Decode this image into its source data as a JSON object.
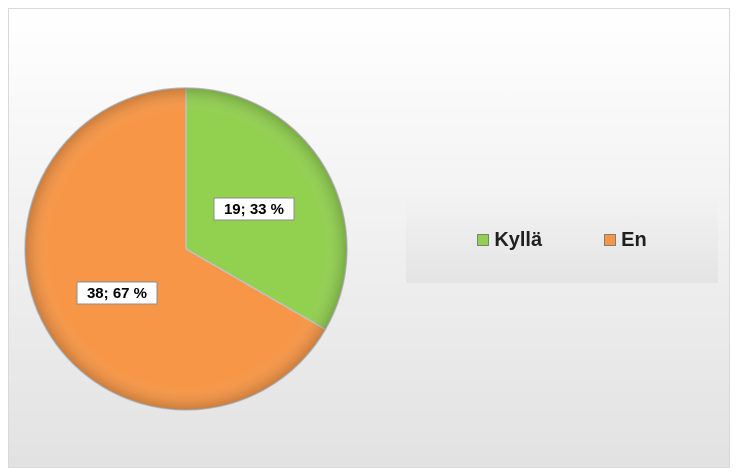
{
  "chart_data": {
    "type": "pie",
    "title": "",
    "categories": [
      "Kyllä",
      "En"
    ],
    "values": [
      19,
      38
    ],
    "percentages": [
      "33 %",
      "67 %"
    ],
    "data_labels": [
      "19; 33 %",
      "38; 67 %"
    ],
    "colors": [
      "#92d050",
      "#f79646"
    ],
    "legend": {
      "position": "right",
      "entries": [
        "Kyllä",
        "En"
      ]
    }
  }
}
